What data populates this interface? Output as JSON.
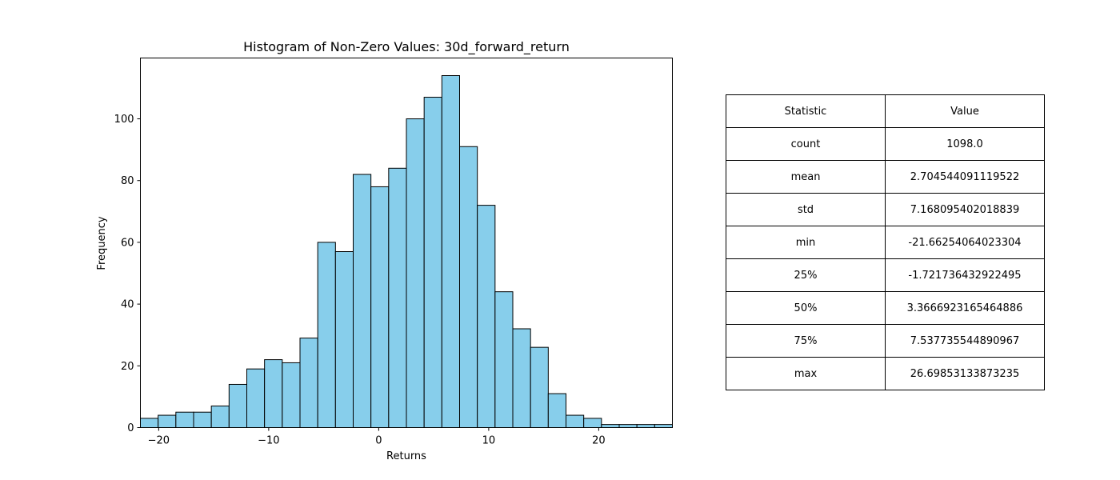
{
  "chart_data": [
    {
      "type": "bar",
      "title": "Histogram of Non-Zero Values: 30d_forward_return",
      "xlabel": "Returns",
      "ylabel": "Frequency",
      "xlim": [
        -21.66254064023304,
        26.69853133873235
      ],
      "ylim": [
        0,
        119.7
      ],
      "bin_start": -21.66254064023304,
      "bin_end": 26.69853133873235,
      "bin_count": 30,
      "values": [
        3,
        4,
        5,
        5,
        7,
        14,
        19,
        22,
        21,
        29,
        60,
        57,
        82,
        78,
        84,
        100,
        107,
        114,
        91,
        72,
        44,
        32,
        26,
        11,
        4,
        3,
        1,
        1,
        1,
        1
      ],
      "xticks": [
        -20,
        -10,
        0,
        10,
        20
      ],
      "xtick_labels": [
        "−20",
        "−10",
        "0",
        "10",
        "20"
      ],
      "yticks": [
        0,
        20,
        40,
        60,
        80,
        100
      ],
      "ytick_labels": [
        "0",
        "20",
        "40",
        "60",
        "80",
        "100"
      ],
      "bar_color": "#87ceeb",
      "edge_color": "#000000",
      "grid": false
    },
    {
      "type": "table",
      "columns": [
        "Statistic",
        "Value"
      ],
      "rows": [
        [
          "count",
          "1098.0"
        ],
        [
          "mean",
          "2.704544091119522"
        ],
        [
          "std",
          "7.168095402018839"
        ],
        [
          "min",
          "-21.66254064023304"
        ],
        [
          "25%",
          "-1.721736432922495"
        ],
        [
          "50%",
          "3.3666923165464886"
        ],
        [
          "75%",
          "7.537735544890967"
        ],
        [
          "max",
          "26.69853133873235"
        ]
      ]
    }
  ]
}
